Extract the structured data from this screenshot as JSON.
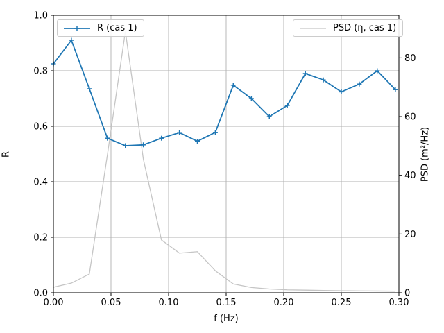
{
  "figure": {
    "background": "#ffffff"
  },
  "axes": {
    "xlabel": "f (Hz)",
    "ylabel_left": "R",
    "ylabel_right": "PSD (m²/Hz)",
    "x_ticks": {
      "values": [
        0.0,
        0.05,
        0.1,
        0.15,
        0.2,
        0.25,
        0.3
      ],
      "labels": [
        "0.00",
        "0.05",
        "0.10",
        "0.15",
        "0.20",
        "0.25",
        "0.30"
      ]
    },
    "y_left_ticks": {
      "values": [
        0.0,
        0.2,
        0.4,
        0.6,
        0.8,
        1.0
      ],
      "labels": [
        "0.0",
        "0.2",
        "0.4",
        "0.6",
        "0.8",
        "1.0"
      ]
    },
    "y_right_ticks": {
      "values": [
        0,
        20,
        40,
        60,
        80
      ],
      "labels": [
        "0",
        "20",
        "40",
        "60",
        "80"
      ]
    },
    "grid_color": "#b0b0b0",
    "spine_color": "#000000"
  },
  "legend1": {
    "label": "R (cas 1)"
  },
  "legend2": {
    "label": "PSD (η, cas 1)"
  },
  "chart_data": {
    "type": "line",
    "title": "",
    "xlabel": "f (Hz)",
    "ylabel_left": "R",
    "ylabel_right": "PSD (m²/Hz)",
    "xlim": [
      0.0,
      0.3
    ],
    "ylim_left": [
      0.0,
      1.0
    ],
    "ylim_right": [
      0.0,
      94.5
    ],
    "grid": true,
    "legend_positions": [
      "upper left",
      "upper right"
    ],
    "x": [
      0.0,
      0.0156,
      0.0312,
      0.0469,
      0.0625,
      0.0781,
      0.0938,
      0.1094,
      0.125,
      0.1406,
      0.1562,
      0.1719,
      0.1875,
      0.2031,
      0.2188,
      0.2344,
      0.25,
      0.2656,
      0.2812,
      0.2969
    ],
    "series": [
      {
        "name": "R (cas 1)",
        "axis": "left",
        "color": "#1f77b4",
        "marker": "+",
        "linewidth": 1.8,
        "values": [
          0.825,
          0.91,
          0.735,
          0.557,
          0.53,
          0.533,
          0.557,
          0.577,
          0.546,
          0.578,
          0.748,
          0.7,
          0.635,
          0.675,
          0.79,
          0.767,
          0.724,
          0.752,
          0.8,
          0.732
        ]
      },
      {
        "name": "PSD (η, cas 1)",
        "axis": "right",
        "color": "#c5c5c5",
        "marker": null,
        "linewidth": 1.3,
        "values": [
          1.9,
          3.3,
          6.4,
          47.0,
          89.0,
          45.5,
          18.0,
          13.5,
          14.0,
          7.5,
          3.0,
          1.8,
          1.3,
          1.0,
          0.9,
          0.8,
          0.7,
          0.65,
          0.6,
          0.55
        ]
      }
    ]
  }
}
